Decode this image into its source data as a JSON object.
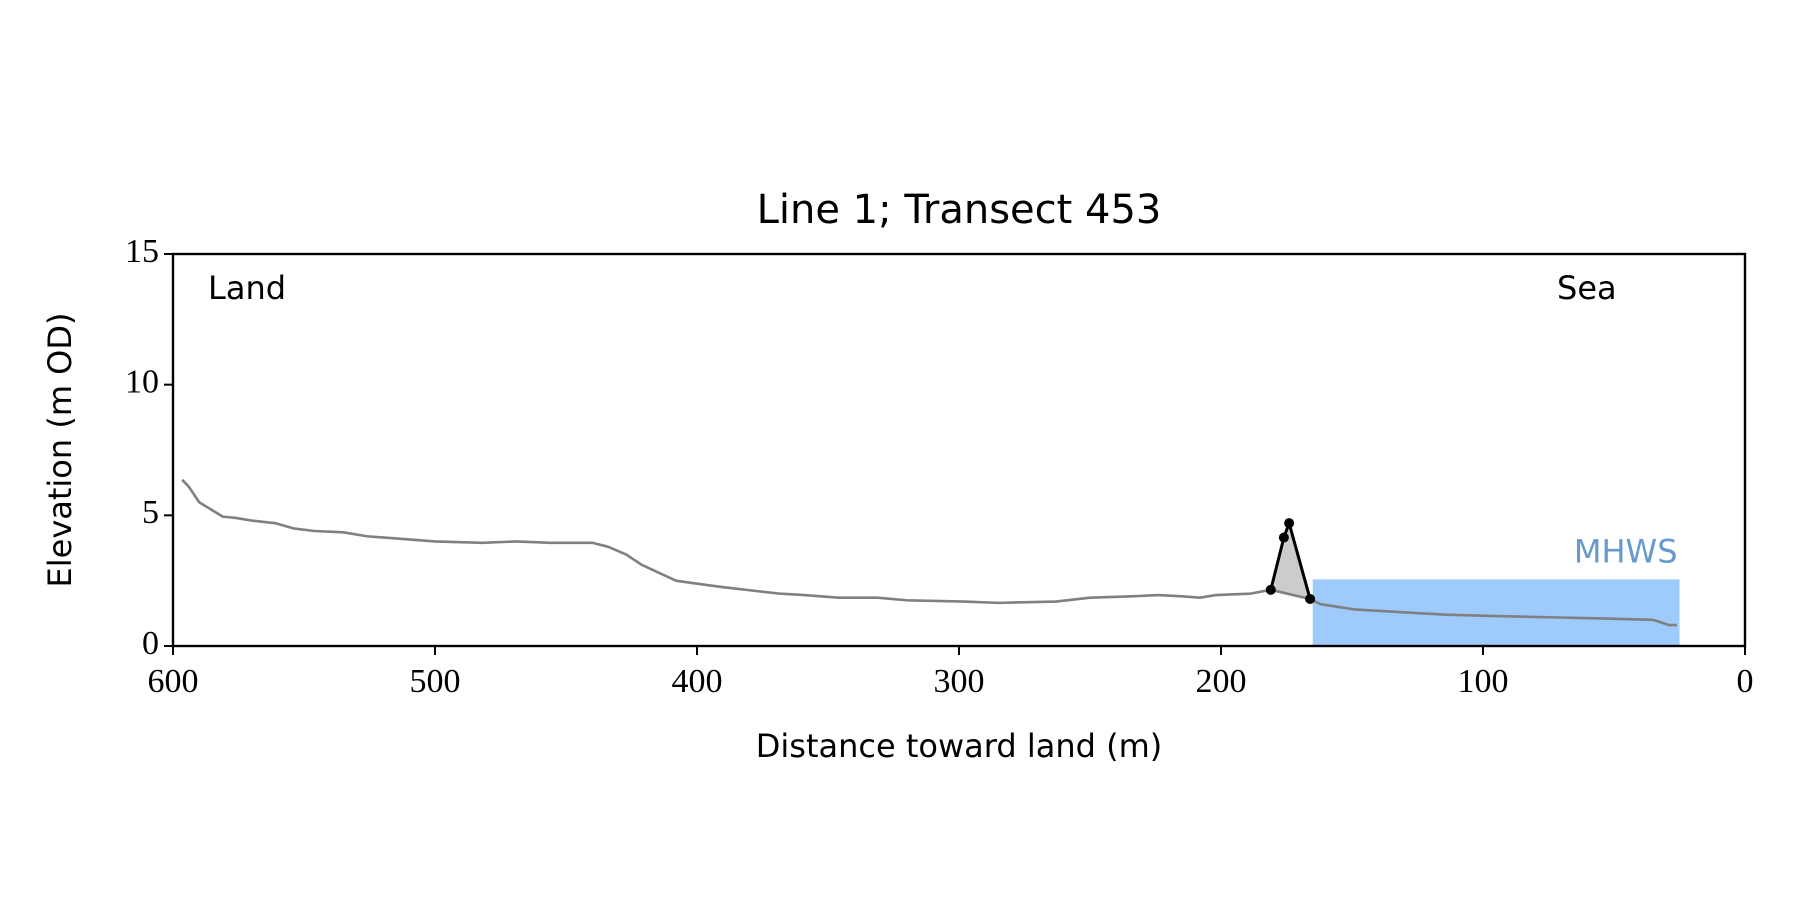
{
  "chart_data": {
    "type": "line",
    "title": "Line 1; Transect 453",
    "xlabel": "Distance toward land (m)",
    "ylabel": "Elevation (m OD)",
    "annotations": [
      "Land",
      "Sea"
    ],
    "xlim": [
      600,
      0
    ],
    "ylim": [
      0,
      15
    ],
    "xticks": [
      600,
      500,
      400,
      300,
      200,
      100,
      0
    ],
    "yticks": [
      0,
      5,
      10,
      15
    ],
    "dune_fill_color": "#cccccc",
    "series": [
      {
        "color": "#808080",
        "x": [
          596.5,
          594,
          590,
          581,
          576,
          570,
          561,
          554,
          546,
          535,
          526,
          513,
          500,
          482,
          469,
          456,
          440,
          434,
          427,
          421,
          408,
          401,
          390,
          377,
          368,
          359,
          346,
          331,
          320,
          298,
          285,
          263,
          250,
          234,
          224,
          215,
          208,
          202,
          189,
          181,
          166,
          162,
          149,
          132,
          114,
          97,
          75,
          53,
          35,
          29,
          26
        ],
        "values": [
          6.36,
          6.1,
          5.5,
          4.95,
          4.9,
          4.8,
          4.7,
          4.5,
          4.4,
          4.35,
          4.2,
          4.1,
          4.0,
          3.95,
          4.0,
          3.95,
          3.95,
          3.8,
          3.5,
          3.1,
          2.5,
          2.4,
          2.25,
          2.1,
          2.0,
          1.95,
          1.85,
          1.85,
          1.75,
          1.7,
          1.65,
          1.7,
          1.85,
          1.9,
          1.95,
          1.9,
          1.85,
          1.95,
          2.0,
          2.15,
          1.8,
          1.6,
          1.4,
          1.3,
          1.2,
          1.15,
          1.1,
          1.05,
          1.0,
          0.8,
          0.8
        ]
      },
      {
        "color": "#000000",
        "markers": true,
        "x": [
          181,
          176,
          174,
          166
        ],
        "values": [
          2.15,
          4.15,
          4.7,
          1.8
        ]
      }
    ],
    "mhws": {
      "label": "MHWS",
      "value": 2.55,
      "x_range": [
        165,
        25
      ],
      "color": "#9ecbfb",
      "label_color": "#6699cc"
    }
  }
}
